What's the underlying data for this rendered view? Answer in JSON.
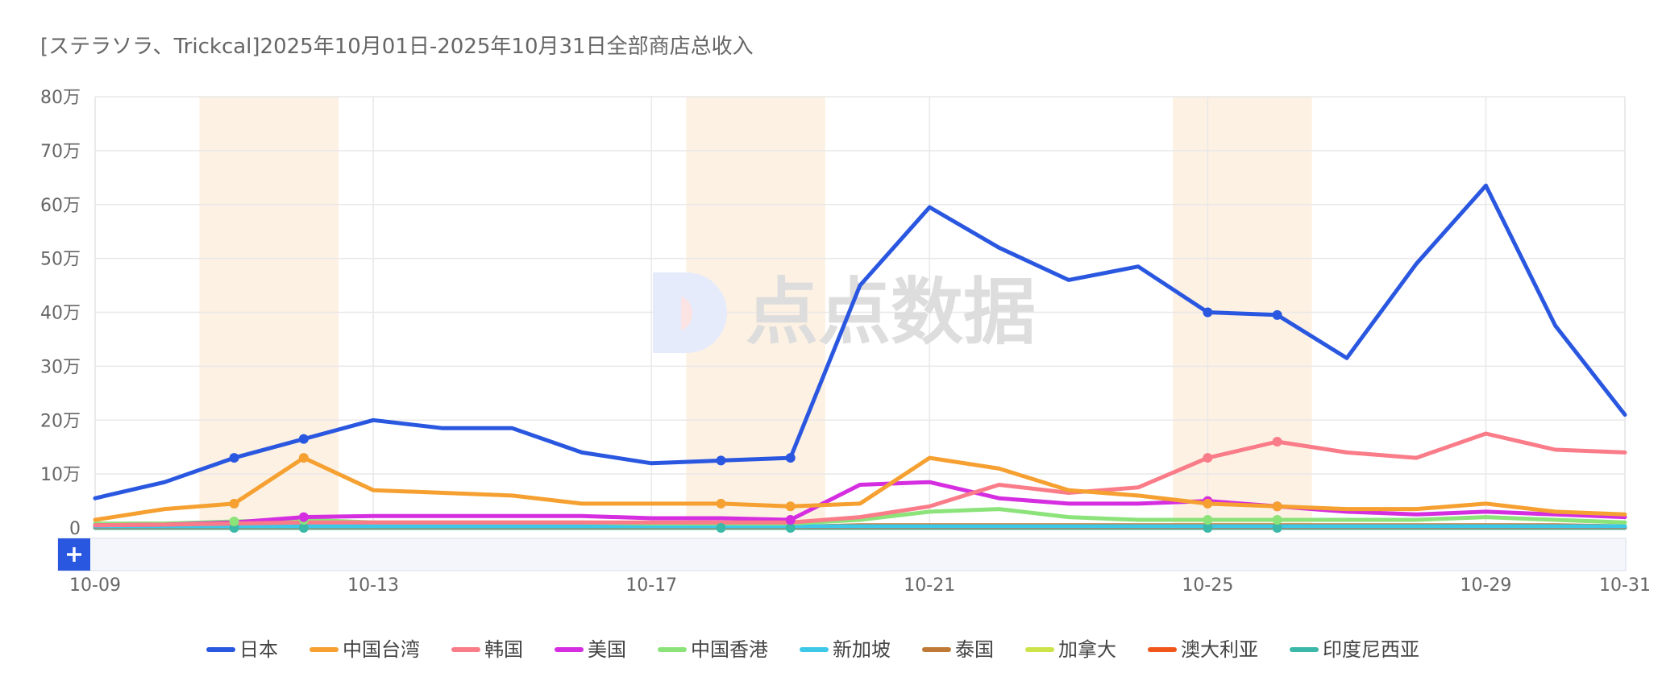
{
  "chart_data": {
    "type": "line",
    "title": "[ステラソラ、Trickcal]2025年10月01日-2025年10月31日全部商店总收入",
    "watermark": "点点数据",
    "x": [
      "10-09",
      "10-10",
      "10-11",
      "10-12",
      "10-13",
      "10-14",
      "10-15",
      "10-16",
      "10-17",
      "10-18",
      "10-19",
      "10-20",
      "10-21",
      "10-22",
      "10-23",
      "10-24",
      "10-25",
      "10-26",
      "10-27",
      "10-28",
      "10-29",
      "10-30",
      "10-31"
    ],
    "x_tick_labels": [
      "10-09",
      "10-13",
      "10-17",
      "10-21",
      "10-25",
      "10-29",
      "10-31"
    ],
    "y_tick_labels": [
      "0",
      "10万",
      "20万",
      "30万",
      "40万",
      "50万",
      "60万",
      "70万",
      "80万"
    ],
    "y_tick_values": [
      0,
      100000,
      200000,
      300000,
      400000,
      500000,
      600000,
      700000,
      800000
    ],
    "ylim": [
      0,
      800000
    ],
    "highlight_ranges": [
      [
        "10-11",
        "10-12"
      ],
      [
        "10-18",
        "10-19"
      ],
      [
        "10-25",
        "10-26"
      ]
    ],
    "highlight_color": "#fdf1e3",
    "grid": true,
    "legend_position": "bottom",
    "series": [
      {
        "name": "日本",
        "color": "#2a57e0",
        "values": [
          55000,
          85000,
          130000,
          165000,
          200000,
          185000,
          185000,
          140000,
          120000,
          125000,
          130000,
          450000,
          595000,
          520000,
          460000,
          485000,
          400000,
          395000,
          315000,
          490000,
          635000,
          375000,
          210000
        ],
        "markers": [
          2,
          3,
          9,
          10,
          16,
          17
        ]
      },
      {
        "name": "中国台湾",
        "color": "#f5a030",
        "values": [
          15000,
          35000,
          45000,
          130000,
          70000,
          65000,
          60000,
          45000,
          45000,
          45000,
          40000,
          45000,
          130000,
          110000,
          70000,
          60000,
          45000,
          40000,
          35000,
          35000,
          45000,
          30000,
          25000
        ],
        "markers": [
          2,
          3,
          9,
          10,
          16,
          17
        ]
      },
      {
        "name": "韩国",
        "color": "#f97c88",
        "values": [
          5000,
          6000,
          8000,
          10000,
          10000,
          10000,
          10000,
          10000,
          10000,
          10000,
          10000,
          20000,
          40000,
          80000,
          65000,
          75000,
          130000,
          160000,
          140000,
          130000,
          175000,
          145000,
          140000
        ],
        "markers": [
          16,
          17
        ]
      },
      {
        "name": "美国",
        "color": "#d52ee0",
        "values": [
          5000,
          6000,
          10000,
          20000,
          22000,
          22000,
          22000,
          22000,
          18000,
          18000,
          15000,
          80000,
          85000,
          55000,
          45000,
          45000,
          50000,
          40000,
          30000,
          25000,
          30000,
          25000,
          20000
        ],
        "markers": [
          3,
          10,
          16,
          17
        ]
      },
      {
        "name": "中国香港",
        "color": "#8be37a",
        "values": [
          8000,
          8000,
          12000,
          15000,
          10000,
          10000,
          10000,
          10000,
          8000,
          8000,
          8000,
          15000,
          30000,
          35000,
          20000,
          15000,
          15000,
          15000,
          15000,
          15000,
          20000,
          15000,
          10000
        ],
        "markers": [
          2,
          3,
          16,
          17
        ]
      },
      {
        "name": "新加坡",
        "color": "#3ec8e8",
        "values": [
          3000,
          3000,
          3000,
          3000,
          3000,
          3000,
          3000,
          3000,
          3000,
          3000,
          3000,
          3000,
          3000,
          3000,
          3000,
          3000,
          3000,
          3000,
          3000,
          3000,
          3000,
          3000,
          3000
        ],
        "markers": []
      },
      {
        "name": "泰国",
        "color": "#c07a38",
        "values": [
          2000,
          2000,
          2000,
          2000,
          2000,
          2000,
          2000,
          2000,
          2000,
          2000,
          2000,
          5000,
          5000,
          5000,
          5000,
          5000,
          5000,
          5000,
          5000,
          5000,
          5000,
          5000,
          3000
        ],
        "markers": []
      },
      {
        "name": "加拿大",
        "color": "#cde34a",
        "values": [
          3000,
          3000,
          3000,
          3000,
          3000,
          3000,
          3000,
          3000,
          3000,
          3000,
          3000,
          3000,
          3000,
          3000,
          3000,
          3000,
          3000,
          3000,
          3000,
          3000,
          3000,
          3000,
          3000
        ],
        "markers": []
      },
      {
        "name": "澳大利亚",
        "color": "#f0561a",
        "values": [
          2000,
          2000,
          2000,
          2000,
          2000,
          2000,
          2000,
          2000,
          2000,
          2000,
          2000,
          2000,
          2000,
          2000,
          2000,
          2000,
          2000,
          2000,
          2000,
          2000,
          2000,
          2000,
          2000
        ],
        "markers": []
      },
      {
        "name": "印度尼西亚",
        "color": "#3bb8a8",
        "values": [
          0,
          0,
          0,
          0,
          0,
          0,
          0,
          0,
          0,
          0,
          0,
          0,
          0,
          0,
          0,
          0,
          0,
          0,
          0,
          0,
          0,
          0,
          0
        ],
        "markers": [
          2,
          3,
          9,
          10,
          16,
          17
        ]
      }
    ]
  }
}
